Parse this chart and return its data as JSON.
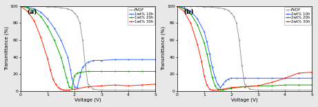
{
  "panel_a": {
    "title": "(a)",
    "xlabel": "Voltage (V)",
    "ylabel": "Transmittance (%)",
    "xlim": [
      0,
      5
    ],
    "ylim": [
      0,
      100
    ],
    "series": [
      {
        "label": "PVDF",
        "color": "#999999",
        "x": [
          0,
          0.25,
          0.5,
          0.75,
          1.0,
          1.25,
          1.5,
          1.75,
          1.9,
          2.0,
          2.1,
          2.2,
          2.3,
          2.4,
          2.5,
          2.7,
          3.0,
          3.5,
          4.0,
          4.5,
          5.0
        ],
        "y": [
          100,
          100,
          100,
          100,
          99,
          99,
          98,
          97,
          95,
          92,
          88,
          80,
          60,
          30,
          8,
          2,
          1,
          1,
          1,
          1,
          1
        ]
      },
      {
        "label": "1wt% 10h",
        "color": "#3366ff",
        "x": [
          0,
          0.25,
          0.5,
          0.75,
          1.0,
          1.25,
          1.5,
          1.75,
          1.85,
          1.9,
          2.0,
          2.1,
          2.2,
          2.3,
          2.5,
          2.7,
          3.0,
          3.5,
          4.0,
          4.5,
          5.0
        ],
        "y": [
          100,
          99,
          97,
          93,
          85,
          74,
          60,
          40,
          25,
          15,
          5,
          4,
          17,
          28,
          34,
          36,
          36,
          37,
          37,
          37,
          37
        ]
      },
      {
        "label": "1wt% 20h",
        "color": "#00aa00",
        "x": [
          0,
          0.25,
          0.5,
          0.75,
          1.0,
          1.25,
          1.5,
          1.6,
          1.7,
          1.75,
          1.8,
          1.9,
          2.0,
          2.1,
          2.2,
          2.5,
          3.0,
          3.5,
          4.0,
          4.5,
          5.0
        ],
        "y": [
          100,
          98,
          95,
          88,
          76,
          60,
          40,
          28,
          16,
          10,
          5,
          3,
          18,
          21,
          22,
          23,
          23,
          23,
          23,
          23,
          23
        ]
      },
      {
        "label": "1wt% 30h",
        "color": "#ff2200",
        "x": [
          0,
          0.25,
          0.5,
          0.75,
          1.0,
          1.1,
          1.2,
          1.3,
          1.4,
          1.5,
          1.6,
          1.7,
          1.8,
          2.0,
          2.5,
          3.0,
          3.5,
          4.0,
          4.5,
          5.0
        ],
        "y": [
          100,
          94,
          83,
          63,
          38,
          25,
          14,
          8,
          4,
          2,
          1,
          1,
          1,
          2,
          5,
          6,
          7,
          6,
          7,
          8
        ]
      }
    ]
  },
  "panel_b": {
    "title": "(b)",
    "xlabel": "Voltage (V)",
    "ylabel": "Transmittance (%)",
    "xlim": [
      0,
      5
    ],
    "ylim": [
      0,
      100
    ],
    "series": [
      {
        "label": "PVDF",
        "color": "#999999",
        "x": [
          0,
          0.25,
          0.5,
          0.75,
          1.0,
          1.25,
          1.5,
          1.75,
          1.9,
          2.0,
          2.1,
          2.2,
          2.3,
          2.4,
          2.5,
          2.7,
          3.0,
          3.5,
          4.0,
          4.5,
          5.0
        ],
        "y": [
          100,
          100,
          100,
          100,
          99,
          99,
          98,
          97,
          95,
          92,
          88,
          80,
          60,
          30,
          8,
          2,
          1,
          1,
          1,
          1,
          1
        ]
      },
      {
        "label": "2wt% 10h",
        "color": "#3366ff",
        "x": [
          0,
          0.25,
          0.5,
          0.75,
          1.0,
          1.1,
          1.2,
          1.3,
          1.4,
          1.5,
          1.6,
          1.7,
          1.8,
          1.9,
          2.0,
          2.2,
          2.5,
          3.0,
          3.5,
          4.0,
          4.5,
          5.0
        ],
        "y": [
          100,
          98,
          94,
          85,
          70,
          58,
          44,
          28,
          16,
          8,
          4,
          8,
          12,
          14,
          15,
          15,
          15,
          15,
          15,
          15,
          15,
          15
        ]
      },
      {
        "label": "2wt% 20h",
        "color": "#00aa00",
        "x": [
          0,
          0.25,
          0.5,
          0.75,
          1.0,
          1.1,
          1.2,
          1.3,
          1.4,
          1.5,
          1.6,
          1.7,
          2.0,
          2.5,
          3.0,
          3.5,
          4.0,
          4.5,
          5.0
        ],
        "y": [
          100,
          97,
          91,
          78,
          57,
          44,
          30,
          16,
          6,
          2,
          1,
          1,
          3,
          5,
          6,
          6,
          7,
          7,
          7
        ]
      },
      {
        "label": "2wt% 30h",
        "color": "#ff2200",
        "x": [
          0,
          0.25,
          0.5,
          0.75,
          0.9,
          1.0,
          1.1,
          1.2,
          1.3,
          1.5,
          1.7,
          2.0,
          2.5,
          3.0,
          3.5,
          4.0,
          4.5,
          5.0
        ],
        "y": [
          100,
          94,
          80,
          55,
          35,
          18,
          7,
          2,
          1,
          1,
          2,
          4,
          5,
          6,
          10,
          15,
          21,
          22
        ]
      }
    ]
  },
  "figure_bg": "#e8e8e8",
  "axes_bg": "#ffffff",
  "marker": "o",
  "markersize": 1.5,
  "linewidth": 0.7,
  "legend_fontsize": 4.0,
  "tick_fontsize": 4.5,
  "label_fontsize": 5.0,
  "title_fontsize": 6.5
}
